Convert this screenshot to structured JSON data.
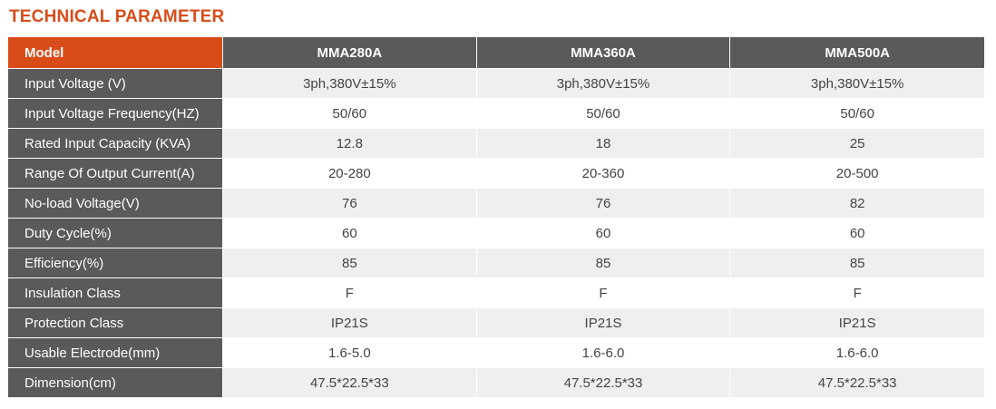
{
  "title": "TECHNICAL PARAMETER",
  "colors": {
    "accent": "#d94c1a",
    "header_bg": "#5a5a5a",
    "stripe": "#efefef"
  },
  "table": {
    "header": {
      "label": "Model",
      "models": [
        "MMA280A",
        "MMA360A",
        "MMA500A"
      ]
    },
    "rows": [
      {
        "label": "Input Voltage (V)",
        "values": [
          "3ph,380V±15%",
          "3ph,380V±15%",
          "3ph,380V±15%"
        ]
      },
      {
        "label": "Input Voltage Frequency(HZ)",
        "values": [
          "50/60",
          "50/60",
          "50/60"
        ]
      },
      {
        "label": "Rated Input Capacity (KVA)",
        "values": [
          "12.8",
          "18",
          "25"
        ]
      },
      {
        "label": "Range Of Output Current(A)",
        "values": [
          "20-280",
          "20-360",
          "20-500"
        ]
      },
      {
        "label": "No-load Voltage(V)",
        "values": [
          "76",
          "76",
          "82"
        ]
      },
      {
        "label": "Duty Cycle(%)",
        "values": [
          "60",
          "60",
          "60"
        ]
      },
      {
        "label": "Efficiency(%)",
        "values": [
          "85",
          "85",
          "85"
        ]
      },
      {
        "label": "Insulation Class",
        "values": [
          "F",
          "F",
          "F"
        ]
      },
      {
        "label": "Protection Class",
        "values": [
          "IP21S",
          "IP21S",
          "IP21S"
        ]
      },
      {
        "label": "Usable Electrode(mm)",
        "values": [
          "1.6-5.0",
          "1.6-6.0",
          "1.6-6.0"
        ]
      },
      {
        "label": "Dimension(cm)",
        "values": [
          "47.5*22.5*33",
          "47.5*22.5*33",
          "47.5*22.5*33"
        ]
      }
    ]
  }
}
